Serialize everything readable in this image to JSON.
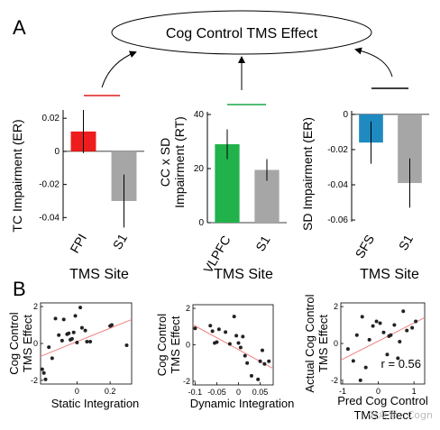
{
  "panel_labels": {
    "a": "A",
    "b": "B"
  },
  "top_node": "Cog Control TMS Effect",
  "x_site_label": "TMS Site",
  "watermark": "公众号 · Cogn",
  "colors": {
    "fpi": "#ee1c1c",
    "vlpfc": "#22b24c",
    "sfs": "#1f8ac0",
    "s1": "#a6a6a6",
    "red_line": "#e01b1b",
    "green_line": "#1aa64a",
    "black_line": "#000000",
    "fit_line": "#f08080",
    "point": "#222222"
  },
  "chart_data": [
    {
      "type": "bar",
      "ylabel": "TC Impairment (ER)",
      "xlabel": "TMS Site",
      "categories": [
        "FPI",
        "S1"
      ],
      "values": [
        0.012,
        -0.03
      ],
      "errors": [
        0.013,
        0.016
      ],
      "ylim": [
        -0.042,
        0.025
      ],
      "yticks": [
        -0.04,
        -0.02,
        0,
        0.02
      ],
      "ytick_labels": [
        "-0.04",
        "-0.02",
        "0",
        "0.02"
      ]
    },
    {
      "type": "bar",
      "ylabel": "CC x SD Impairment (RT)",
      "xlabel": "TMS Site",
      "categories": [
        "VLPFC",
        "S1"
      ],
      "values": [
        29,
        19.5
      ],
      "errors": [
        5.5,
        4
      ],
      "ylim": [
        0,
        41
      ],
      "yticks": [
        0,
        20,
        40
      ],
      "ytick_labels": [
        "0",
        "20",
        "40"
      ]
    },
    {
      "type": "bar",
      "ylabel": "SD Impairment (ER)",
      "xlabel": "TMS Site",
      "categories": [
        "SFS",
        "S1"
      ],
      "values": [
        -0.016,
        -0.039
      ],
      "errors": [
        0.012,
        0.014
      ],
      "ylim": [
        -0.061,
        0.002
      ],
      "yticks": [
        -0.06,
        -0.04,
        -0.02,
        0
      ],
      "ytick_labels": [
        "-0.06",
        "-0.04",
        "-0.02",
        "0"
      ]
    },
    {
      "type": "scatter",
      "ylabel": "Cog Control TMS Effect",
      "xlabel": "Static Integration",
      "xlim": [
        -0.22,
        0.33
      ],
      "ylim": [
        -2.2,
        2.2
      ],
      "xticks": [
        0,
        0.2
      ],
      "xtick_labels": [
        "0",
        "0.2"
      ],
      "yticks": [
        -2,
        0,
        2
      ],
      "ytick_labels": [
        "-2",
        "0",
        "2"
      ],
      "fit": {
        "x": [
          -0.22,
          0.33
        ],
        "y": [
          -0.7,
          1.3
        ]
      },
      "x": [
        -0.21,
        -0.19,
        -0.2,
        -0.17,
        -0.13,
        -0.11,
        -0.09,
        -0.08,
        -0.06,
        -0.04,
        -0.03,
        -0.02,
        -0.01,
        0.0,
        0.02,
        0.03,
        0.05,
        0.06,
        0.08,
        0.2,
        0.21,
        0.3,
        -0.15,
        -0.05
      ],
      "y": [
        -1.4,
        -1.95,
        -1.6,
        -0.2,
        1.35,
        0.45,
        0.15,
        1.3,
        0.5,
        0.2,
        0.25,
        0.6,
        1.5,
        0.05,
        1.95,
        0.85,
        0.7,
        0.1,
        0.1,
        0.95,
        1.0,
        -0.1,
        -0.8,
        0.55
      ]
    },
    {
      "type": "scatter",
      "ylabel": "Cog Control TMS Effect",
      "xlabel": "Dynamic Integration",
      "xlim": [
        -0.105,
        0.08
      ],
      "ylim": [
        -2.2,
        2.2
      ],
      "xticks": [
        -0.1,
        -0.05,
        0,
        0.05
      ],
      "xtick_labels": [
        "-0.1",
        "-0.05",
        "0",
        "0.05"
      ],
      "yticks": [
        -2,
        0,
        2
      ],
      "ytick_labels": [
        "-2",
        "0",
        "2"
      ],
      "fit": {
        "x": [
          -0.105,
          0.08
        ],
        "y": [
          1.1,
          -1.3
        ]
      },
      "x": [
        -0.1,
        -0.065,
        -0.06,
        -0.055,
        -0.05,
        -0.045,
        -0.03,
        -0.02,
        -0.01,
        -0.005,
        0.0,
        0.005,
        0.01,
        0.015,
        0.02,
        0.03,
        0.045,
        0.05,
        0.055,
        0.06,
        0.07
      ],
      "y": [
        0.9,
        1.05,
        0.75,
        0.1,
        0.15,
        0.85,
        0.7,
        0.05,
        1.55,
        0.5,
        0.1,
        -0.15,
        0.45,
        -0.6,
        -1.0,
        -1.7,
        -1.9,
        -0.9,
        -0.3,
        -1.05,
        -0.9
      ]
    },
    {
      "type": "scatter",
      "ylabel": "Actual Cog Control TMS Effect",
      "xlabel": "Pred Cog Control TMS Effect",
      "annotation": "r = 0.56",
      "xlim": [
        -1.05,
        1.3
      ],
      "ylim": [
        -2.2,
        2.2
      ],
      "xticks": [
        -1,
        0,
        1
      ],
      "xtick_labels": [
        "-1",
        "0",
        "1"
      ],
      "yticks": [
        -2,
        0,
        2
      ],
      "ytick_labels": [
        "-2",
        "0",
        "2"
      ],
      "fit": {
        "x": [
          -1.05,
          1.3
        ],
        "y": [
          -0.9,
          1.4
        ]
      },
      "x": [
        -0.85,
        -0.7,
        -0.6,
        -0.45,
        -0.35,
        -0.25,
        -0.15,
        -0.05,
        0.05,
        0.15,
        0.25,
        0.35,
        0.45,
        0.55,
        0.6,
        0.7,
        0.8,
        0.95,
        1.05,
        -0.5,
        0.3
      ],
      "y": [
        -0.3,
        -0.95,
        0.45,
        1.45,
        -1.3,
        0.2,
        0.95,
        1.2,
        1.1,
        0.6,
        -0.6,
        0.45,
        1.0,
        -0.8,
        0.1,
        1.75,
        0.7,
        0.85,
        1.2,
        -2.0,
        0.4
      ]
    }
  ]
}
